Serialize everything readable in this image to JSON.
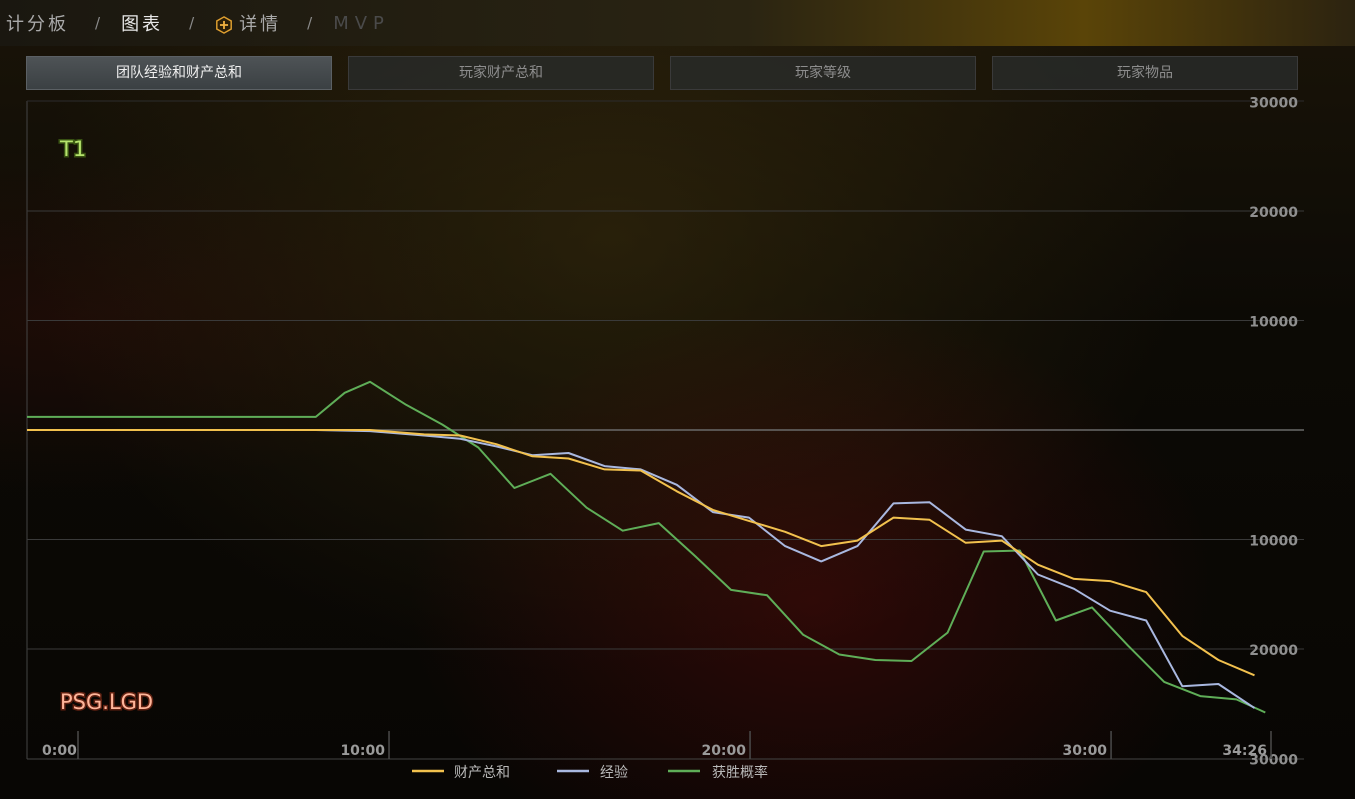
{
  "breadcrumb": {
    "items": [
      "计分板",
      "图表",
      "详情",
      "MVP"
    ],
    "separator": "/",
    "active_index": 1
  },
  "tabs": [
    {
      "label": "团队经验和财产总和",
      "active": true
    },
    {
      "label": "玩家财产总和",
      "active": false
    },
    {
      "label": "玩家等级",
      "active": false
    },
    {
      "label": "玩家物品",
      "active": false
    }
  ],
  "chart_data": {
    "type": "line",
    "title": "",
    "team_top": "T1",
    "team_bottom": "PSG.LGD",
    "x_ticks": [
      "0:00",
      "10:00",
      "20:00",
      "30:00",
      "34:26"
    ],
    "x_range_minutes": [
      0,
      34.43
    ],
    "y_ticks_top": [
      "30000",
      "20000",
      "10000"
    ],
    "y_ticks_bottom": [
      "10000",
      "20000",
      "30000"
    ],
    "ylim": [
      -30000,
      30000
    ],
    "y_direction": "positive = T1 advantage (up), negative = PSG.LGD advantage (down)",
    "colors": {
      "gold": "#f2c14e",
      "xp": "#a9b8e0",
      "win": "#5fae58",
      "t1_label": "#b5e36c",
      "lgd_label": "#ff9b7a"
    },
    "series": [
      {
        "name": "财产总和",
        "x": [
          0,
          8,
          9.5,
          11,
          12,
          13,
          14,
          15,
          16,
          17,
          18,
          19,
          20,
          21,
          22,
          23,
          24,
          25,
          26,
          27,
          28,
          29,
          30,
          31,
          32,
          33,
          34
        ],
        "values": [
          0,
          0,
          0,
          -400,
          -500,
          -1300,
          -2400,
          -2600,
          -3600,
          -3700,
          -5600,
          -7300,
          -8300,
          -9300,
          -10600,
          -10100,
          -8000,
          -8200,
          -10300,
          -10100,
          -12300,
          -13600,
          -13800,
          -14800,
          -18800,
          -21000,
          -22400
        ]
      },
      {
        "name": "经验",
        "x": [
          0,
          8,
          9.5,
          11,
          12,
          13,
          14,
          15,
          16,
          17,
          18,
          19,
          20,
          21,
          22,
          23,
          24,
          25,
          26,
          27,
          28,
          29,
          30,
          31,
          32,
          33,
          34
        ],
        "values": [
          0,
          0,
          -100,
          -500,
          -800,
          -1500,
          -2300,
          -2100,
          -3300,
          -3600,
          -5000,
          -7500,
          -8000,
          -10600,
          -12000,
          -10600,
          -6700,
          -6600,
          -9100,
          -9700,
          -13200,
          -14500,
          -16500,
          -17400,
          -23400,
          -23200,
          -25400
        ]
      },
      {
        "name": "获胜概率",
        "x": [
          0,
          8,
          8.8,
          9.5,
          10.5,
          11.5,
          12.5,
          13.5,
          14.5,
          15.5,
          16.5,
          17.5,
          18.5,
          19.5,
          20.5,
          21.5,
          22.5,
          23.5,
          24.5,
          25.5,
          26.5,
          27.5,
          28.5,
          29.5,
          30.5,
          31.5,
          32.5,
          33.5,
          34.3
        ],
        "values": [
          1200,
          1200,
          3400,
          4400,
          2300,
          500,
          -1600,
          -5300,
          -4000,
          -7100,
          -9200,
          -8500,
          -11500,
          -14600,
          -15100,
          -18700,
          -20500,
          -21000,
          -21100,
          -18500,
          -11100,
          -11000,
          -17400,
          -16200,
          -19700,
          -23000,
          -24300,
          -24600,
          -25800
        ]
      }
    ],
    "legend": {
      "position": "bottom-center",
      "entries": [
        "财产总和",
        "经验",
        "获胜概率"
      ]
    },
    "grid": true
  }
}
